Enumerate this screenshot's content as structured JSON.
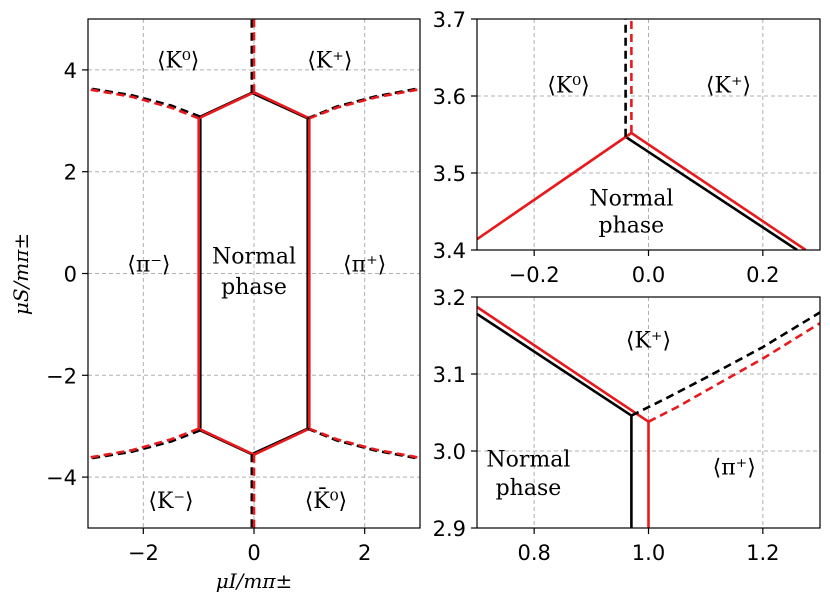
{
  "chart_data": [
    {
      "type": "line",
      "panel": "left",
      "xlabel": "μI/mπ±",
      "ylabel": "μS/mπ±",
      "xlim": [
        -3,
        3
      ],
      "ylim": [
        -5,
        5
      ],
      "xticks": [
        -2,
        0,
        2
      ],
      "xtick_labels": [
        "−2",
        "0",
        "2"
      ],
      "yticks": [
        -4,
        -2,
        0,
        2,
        4
      ],
      "ytick_labels": [
        "−4",
        "−2",
        "0",
        "2",
        "4"
      ],
      "grid": true,
      "regions": [
        {
          "name": "K0-top",
          "text": "⟨K⁰⟩",
          "x": -1.37,
          "y": 4.2
        },
        {
          "name": "Kplus-top",
          "text": "⟨K⁺⟩",
          "x": 1.37,
          "y": 4.2
        },
        {
          "name": "piminus",
          "text": "⟨π⁻⟩",
          "x": -1.9,
          "y": 0.2
        },
        {
          "name": "normal-line1",
          "text": "Normal",
          "x": 0,
          "y": 0.35
        },
        {
          "name": "normal-line2",
          "text": "phase",
          "x": 0,
          "y": -0.25
        },
        {
          "name": "piplus",
          "text": "⟨π⁺⟩",
          "x": 2.0,
          "y": 0.2
        },
        {
          "name": "Kminus-bottom",
          "text": "⟨K⁻⟩",
          "x": -1.5,
          "y": -4.45
        },
        {
          "name": "K0bar-bottom",
          "text": "⟨K̄⁰⟩",
          "x": 1.3,
          "y": -4.45
        }
      ],
      "series": [
        {
          "name": "black solid",
          "color": "#000000",
          "dash": false,
          "segments": [
            [
              [
                -0.97,
                -3.08
              ],
              [
                -0.97,
                3.08
              ]
            ],
            [
              [
                0.97,
                -3.08
              ],
              [
                0.97,
                3.08
              ]
            ],
            [
              [
                -0.97,
                3.08
              ],
              [
                -0.04,
                3.55
              ],
              [
                0.97,
                3.05
              ]
            ],
            [
              [
                -0.97,
                -3.08
              ],
              [
                -0.04,
                -3.55
              ],
              [
                0.97,
                -3.05
              ]
            ]
          ]
        },
        {
          "name": "red solid",
          "color": "#e8191c",
          "dash": false,
          "segments": [
            [
              [
                -1.0,
                -3.05
              ],
              [
                -1.0,
                3.05
              ]
            ],
            [
              [
                1.0,
                -3.05
              ],
              [
                1.0,
                3.05
              ]
            ],
            [
              [
                -1.0,
                3.05
              ],
              [
                0,
                3.56
              ],
              [
                1.0,
                3.05
              ]
            ],
            [
              [
                -1.0,
                -3.05
              ],
              [
                0,
                -3.56
              ],
              [
                1.0,
                -3.05
              ]
            ]
          ]
        },
        {
          "name": "black dashed",
          "color": "#000000",
          "dash": true,
          "segments": [
            [
              [
                -0.04,
                3.55
              ],
              [
                -0.04,
                5
              ]
            ],
            [
              [
                -0.04,
                -3.55
              ],
              [
                -0.04,
                -5
              ]
            ],
            [
              [
                -0.97,
                3.08
              ],
              [
                -1.5,
                3.3
              ],
              [
                -2.2,
                3.5
              ],
              [
                -3,
                3.64
              ]
            ],
            [
              [
                0.97,
                3.05
              ],
              [
                1.5,
                3.28
              ],
              [
                2.2,
                3.48
              ],
              [
                3,
                3.64
              ]
            ],
            [
              [
                -0.97,
                -3.08
              ],
              [
                -1.5,
                -3.3
              ],
              [
                -2.2,
                -3.5
              ],
              [
                -3,
                -3.64
              ]
            ],
            [
              [
                0.97,
                -3.05
              ],
              [
                1.5,
                -3.28
              ],
              [
                2.2,
                -3.48
              ],
              [
                3,
                -3.64
              ]
            ]
          ]
        },
        {
          "name": "red dashed",
          "color": "#e8191c",
          "dash": true,
          "segments": [
            [
              [
                0,
                3.56
              ],
              [
                0,
                5
              ]
            ],
            [
              [
                0,
                -3.56
              ],
              [
                0,
                -5
              ]
            ],
            [
              [
                -1.0,
                3.05
              ],
              [
                -1.5,
                3.26
              ],
              [
                -2.2,
                3.47
              ],
              [
                -3,
                3.62
              ]
            ],
            [
              [
                1.0,
                3.05
              ],
              [
                1.5,
                3.26
              ],
              [
                2.2,
                3.46
              ],
              [
                3,
                3.62
              ]
            ],
            [
              [
                -1.0,
                -3.05
              ],
              [
                -1.5,
                -3.26
              ],
              [
                -2.2,
                -3.47
              ],
              [
                -3,
                -3.62
              ]
            ],
            [
              [
                1.0,
                -3.05
              ],
              [
                1.5,
                -3.26
              ],
              [
                2.2,
                -3.46
              ],
              [
                3,
                -3.62
              ]
            ]
          ]
        }
      ]
    },
    {
      "type": "line",
      "panel": "top-right",
      "xlim": [
        -0.3,
        0.3
      ],
      "ylim": [
        3.4,
        3.7
      ],
      "xticks": [
        -0.2,
        0.0,
        0.2
      ],
      "xtick_labels": [
        "−0.2",
        "0.0",
        "0.2"
      ],
      "yticks": [
        3.4,
        3.5,
        3.6,
        3.7
      ],
      "ytick_labels": [
        "3.4",
        "3.5",
        "3.6",
        "3.7"
      ],
      "grid": true,
      "regions": [
        {
          "name": "K0",
          "text": "⟨K⁰⟩",
          "x": -0.14,
          "y": 3.615
        },
        {
          "name": "Kplus",
          "text": "⟨K⁺⟩",
          "x": 0.14,
          "y": 3.615
        },
        {
          "name": "normal-line1",
          "text": "Normal",
          "x": -0.03,
          "y": 3.468
        },
        {
          "name": "normal-line2",
          "text": "phase",
          "x": -0.03,
          "y": 3.433
        }
      ],
      "series": [
        {
          "name": "black solid",
          "color": "#000000",
          "dash": false,
          "segments": [
            [
              [
                -0.04,
                3.547
              ],
              [
                0.26,
                3.4
              ]
            ]
          ]
        },
        {
          "name": "red solid",
          "color": "#e8191c",
          "dash": false,
          "segments": [
            [
              [
                -0.3,
                3.414
              ],
              [
                -0.03,
                3.552
              ],
              [
                0.275,
                3.4
              ]
            ]
          ]
        },
        {
          "name": "black dashed",
          "color": "#000000",
          "dash": true,
          "segments": [
            [
              [
                -0.04,
                3.547
              ],
              [
                -0.04,
                3.7
              ]
            ]
          ]
        },
        {
          "name": "red dashed",
          "color": "#e8191c",
          "dash": true,
          "segments": [
            [
              [
                -0.03,
                3.552
              ],
              [
                -0.03,
                3.7
              ]
            ]
          ]
        }
      ]
    },
    {
      "type": "line",
      "panel": "bottom-right",
      "xlim": [
        0.7,
        1.3
      ],
      "ylim": [
        2.9,
        3.2
      ],
      "xticks": [
        0.8,
        1.0,
        1.2
      ],
      "xtick_labels": [
        "0.8",
        "1.0",
        "1.2"
      ],
      "yticks": [
        2.9,
        3.0,
        3.1,
        3.2
      ],
      "ytick_labels": [
        "2.9",
        "3.0",
        "3.1",
        "3.2"
      ],
      "grid": true,
      "regions": [
        {
          "name": "Kplus",
          "text": "⟨K⁺⟩",
          "x": 1.0,
          "y": 3.145
        },
        {
          "name": "piplus",
          "text": "⟨π⁺⟩",
          "x": 1.15,
          "y": 2.98
        },
        {
          "name": "normal-line1",
          "text": "Normal",
          "x": 0.79,
          "y": 2.99
        },
        {
          "name": "normal-line2",
          "text": "phase",
          "x": 0.79,
          "y": 2.953
        }
      ],
      "series": [
        {
          "name": "black solid",
          "color": "#000000",
          "dash": false,
          "segments": [
            [
              [
                0.7,
                3.178
              ],
              [
                0.97,
                3.046
              ]
            ],
            [
              [
                0.97,
                3.046
              ],
              [
                0.97,
                2.9
              ]
            ]
          ]
        },
        {
          "name": "red solid",
          "color": "#e8191c",
          "dash": false,
          "segments": [
            [
              [
                0.7,
                3.187
              ],
              [
                1.0,
                3.038
              ]
            ],
            [
              [
                1.0,
                3.038
              ],
              [
                1.0,
                2.9
              ]
            ]
          ]
        },
        {
          "name": "black dashed",
          "color": "#000000",
          "dash": true,
          "segments": [
            [
              [
                0.97,
                3.046
              ],
              [
                1.03,
                3.068
              ],
              [
                1.1,
                3.095
              ],
              [
                1.2,
                3.135
              ],
              [
                1.3,
                3.18
              ]
            ]
          ]
        },
        {
          "name": "red dashed",
          "color": "#e8191c",
          "dash": true,
          "segments": [
            [
              [
                1.0,
                3.038
              ],
              [
                1.05,
                3.057
              ],
              [
                1.1,
                3.078
              ],
              [
                1.2,
                3.12
              ],
              [
                1.3,
                3.166
              ]
            ]
          ]
        }
      ]
    }
  ]
}
